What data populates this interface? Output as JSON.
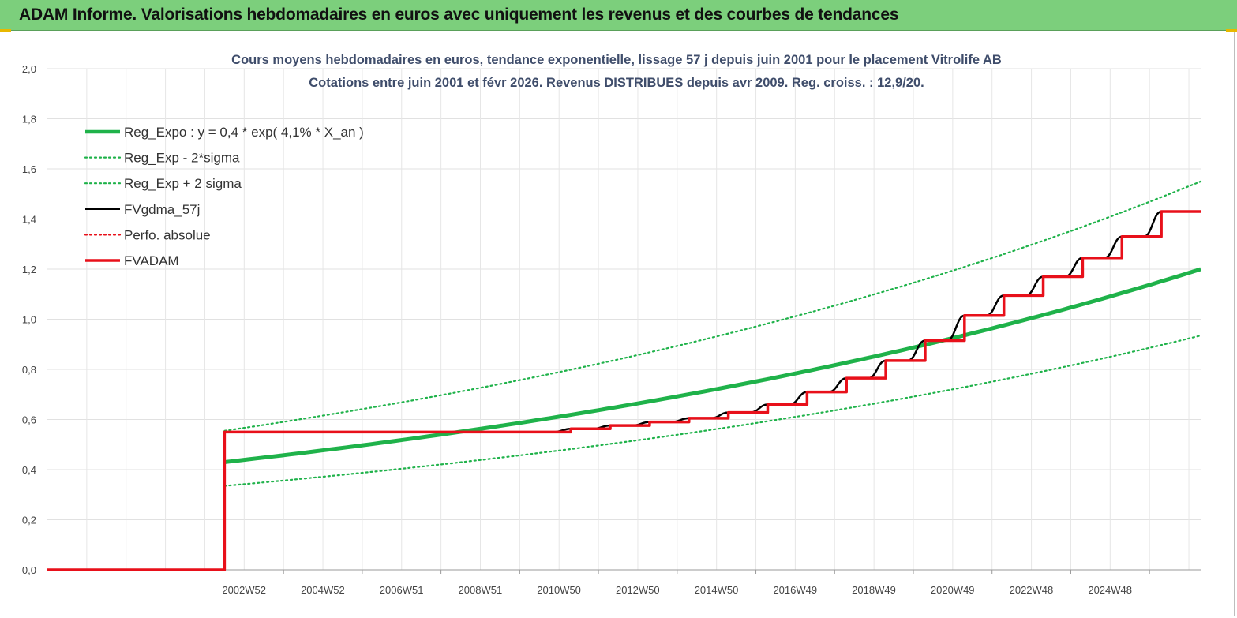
{
  "header": {
    "title": "ADAM Informe. Valorisations hebdomadaires en euros avec uniquement les revenus et des courbes de tendances"
  },
  "colors": {
    "header_bg": "#7ccf7c",
    "reg_green": "#1fb24a",
    "dotted_green": "#1fb24a",
    "fvgdma_black": "#000000",
    "adam_red": "#e8101a",
    "accent_gold": "#e8b800"
  },
  "chart_data": {
    "type": "line",
    "title_line1": "Cours moyens hebdomadaires en euros, tendance exponentielle, lissage 57 j depuis juin 2001 pour le placement Vitrolife AB",
    "title_line2": "Cotations entre juin 2001 et févr 2026. Revenus DISTRIBUES depuis avr 2009. Reg. croiss. : 12,9/20.",
    "ylim": [
      0,
      2.0
    ],
    "y_ticks": [
      "0,0",
      "0,2",
      "0,4",
      "0,6",
      "0,8",
      "1,0",
      "1,2",
      "1,4",
      "1,6",
      "1,8",
      "2,0"
    ],
    "x_range": [
      1997.0,
      2026.3
    ],
    "x_ticks": [
      {
        "label": "2002W52",
        "x": 2003.0
      },
      {
        "label": "2004W52",
        "x": 2005.0
      },
      {
        "label": "2006W51",
        "x": 2007.0
      },
      {
        "label": "2008W51",
        "x": 2009.0
      },
      {
        "label": "2010W50",
        "x": 2011.0
      },
      {
        "label": "2012W50",
        "x": 2013.0
      },
      {
        "label": "2014W50",
        "x": 2015.0
      },
      {
        "label": "2016W49",
        "x": 2017.0
      },
      {
        "label": "2018W49",
        "x": 2019.0
      },
      {
        "label": "2020W49",
        "x": 2021.0
      },
      {
        "label": "2022W48",
        "x": 2023.0
      },
      {
        "label": "2024W48",
        "x": 2025.0
      }
    ],
    "grid": true,
    "legend_position": "top-left",
    "series": [
      {
        "name": "Reg_Expo : y = 0,4 * exp( 4,1% *  X_an )",
        "style": "solid-thick",
        "color": "#1fb24a",
        "x": [
          2001.5,
          2004.0,
          2007.0,
          2010.0,
          2013.0,
          2016.0,
          2019.0,
          2022.0,
          2026.3
        ],
        "values": [
          0.43,
          0.477,
          0.539,
          0.609,
          0.689,
          0.778,
          0.88,
          0.994,
          1.2
        ]
      },
      {
        "name": "Reg_Exp - 2*sigma",
        "style": "dotted",
        "color": "#1fb24a",
        "x": [
          2001.5,
          2004.0,
          2007.0,
          2010.0,
          2013.0,
          2016.0,
          2019.0,
          2022.0,
          2026.3
        ],
        "values": [
          0.335,
          0.372,
          0.42,
          0.474,
          0.536,
          0.606,
          0.685,
          0.774,
          0.935
        ]
      },
      {
        "name": "Reg_Exp + 2 sigma",
        "style": "dotted",
        "color": "#1fb24a",
        "x": [
          2001.5,
          2004.0,
          2007.0,
          2010.0,
          2013.0,
          2016.0,
          2019.0,
          2022.0,
          2026.3
        ],
        "values": [
          0.555,
          0.615,
          0.696,
          0.786,
          0.889,
          1.004,
          1.135,
          1.283,
          1.55
        ]
      },
      {
        "name": "FVgdma_57j",
        "style": "solid",
        "color": "#000000",
        "x": [
          1997.0,
          2001.5,
          2001.5,
          2009.3,
          2010.3,
          2011.3,
          2012.3,
          2013.3,
          2014.3,
          2015.3,
          2016.3,
          2017.3,
          2018.3,
          2019.3,
          2020.3,
          2021.3,
          2022.3,
          2023.3,
          2024.3,
          2025.3,
          2026.3
        ],
        "values": [
          0.0,
          0.0,
          0.55,
          0.55,
          0.563,
          0.576,
          0.59,
          0.605,
          0.628,
          0.66,
          0.71,
          0.765,
          0.835,
          0.915,
          1.015,
          1.095,
          1.17,
          1.245,
          1.33,
          1.43,
          1.43
        ]
      },
      {
        "name": "Perfo. absolue",
        "style": "dotted",
        "color": "#e8101a",
        "x": [],
        "values": []
      },
      {
        "name": "FVADAM",
        "style": "step-thick",
        "color": "#e8101a",
        "x": [
          1997.0,
          2001.5,
          2001.5,
          2009.3,
          2010.3,
          2011.3,
          2012.3,
          2013.3,
          2014.3,
          2015.3,
          2016.3,
          2017.3,
          2018.3,
          2019.3,
          2020.3,
          2021.3,
          2022.3,
          2023.3,
          2024.3,
          2025.3,
          2026.3
        ],
        "values": [
          0.0,
          0.0,
          0.55,
          0.55,
          0.563,
          0.576,
          0.59,
          0.605,
          0.628,
          0.66,
          0.71,
          0.765,
          0.835,
          0.915,
          1.015,
          1.095,
          1.17,
          1.245,
          1.33,
          1.43,
          1.43
        ]
      }
    ]
  }
}
